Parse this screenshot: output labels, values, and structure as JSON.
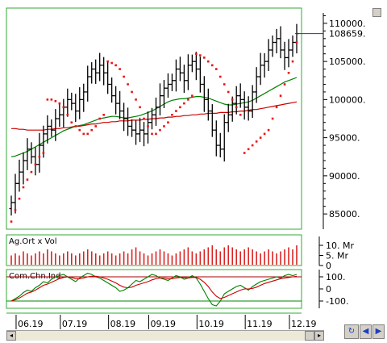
{
  "chart_data": [
    {
      "type": "ohlc",
      "panel": "price",
      "title": "",
      "y_ticks": [
        "110000.",
        "105000.",
        "100000.",
        "95000.",
        "90000.",
        "85000."
      ],
      "y_tick_values": [
        110000,
        105000,
        100000,
        95000,
        90000,
        85000
      ],
      "ylim": [
        83000,
        112000
      ],
      "last_price_label": "108659.",
      "last_price": 108659,
      "x_ticks": [
        "06.19",
        "07.19",
        "08.19",
        "09.19",
        "10.19",
        "11.19",
        "12.19"
      ],
      "series": [
        {
          "name": "",
          "kind": "ohlc",
          "color": "#000000",
          "close": [
            86500,
            89000,
            90500,
            92000,
            93500,
            92500,
            91500,
            94000,
            95500,
            96500,
            96000,
            97500,
            98000,
            99000,
            100000,
            99500,
            98500,
            100000,
            101000,
            103000,
            104000,
            103500,
            104500,
            103500,
            102000,
            100500,
            99500,
            98500,
            97500,
            96500,
            96000,
            95500,
            96000,
            95500,
            97000,
            98000,
            99000,
            100500,
            101500,
            102000,
            102500,
            104000,
            103500,
            102500,
            104500,
            105000,
            104000,
            102000,
            100000,
            98500,
            96000,
            94000,
            93500,
            97000,
            98000,
            99500,
            100500,
            100000,
            99000,
            98500,
            101000,
            103000,
            104500,
            105000,
            106500,
            107500,
            108000,
            106500,
            105500,
            106500,
            107500,
            108659
          ]
        },
        {
          "name": "",
          "kind": "parabolic-sar",
          "color": "#ee1111",
          "values": [
            84000,
            85500,
            87000,
            88500,
            89500,
            90500,
            91500,
            92500,
            93000,
            100000,
            100000,
            99800,
            99500,
            99000,
            98000,
            97000,
            96500,
            96000,
            95500,
            95500,
            96000,
            96500,
            97500,
            98000,
            105000,
            104800,
            104500,
            104000,
            103000,
            102000,
            101000,
            100000,
            99000,
            97500,
            96500,
            95500,
            95500,
            96000,
            96500,
            97000,
            98000,
            98500,
            99000,
            99500,
            100000,
            100500,
            106000,
            105800,
            105500,
            105000,
            104500,
            104000,
            103000,
            102000,
            101000,
            100000,
            99000,
            98000,
            93000,
            93500,
            94000,
            94500,
            95000,
            95500,
            96000,
            97500,
            99000,
            100500,
            102000,
            103500,
            105000,
            107500
          ]
        },
        {
          "name": "",
          "kind": "moving-average",
          "color": "#008000",
          "values": [
            92500,
            92600,
            92800,
            93000,
            93200,
            93500,
            93800,
            94100,
            94400,
            94700,
            95000,
            95300,
            95600,
            95900,
            96100,
            96300,
            96500,
            96600,
            96700,
            96900,
            97100,
            97300,
            97500,
            97600,
            97700,
            97800,
            97800,
            97700,
            97600,
            97600,
            97700,
            97800,
            97900,
            98100,
            98300,
            98500,
            98800,
            99100,
            99400,
            99700,
            99900,
            100000,
            100100,
            100100,
            100200,
            100300,
            100400,
            100400,
            100300,
            100200,
            100000,
            99800,
            99600,
            99400,
            99300,
            99300,
            99400,
            99500,
            99600,
            99700,
            99900,
            100200,
            100500,
            100800,
            101100,
            101400,
            101700,
            102000,
            102300,
            102500,
            102700,
            102900
          ]
        },
        {
          "name": "",
          "kind": "moving-average",
          "color": "#cc0000",
          "values": [
            96200,
            96200,
            96100,
            96100,
            96000,
            96000,
            96000,
            96000,
            96000,
            96100,
            96100,
            96200,
            96200,
            96300,
            96300,
            96400,
            96500,
            96500,
            96600,
            96700,
            96800,
            96800,
            96900,
            97000,
            97000,
            97100,
            97100,
            97200,
            97200,
            97200,
            97300,
            97300,
            97300,
            97400,
            97400,
            97500,
            97500,
            97600,
            97600,
            97700,
            97700,
            97800,
            97800,
            97900,
            97900,
            98000,
            98000,
            98100,
            98100,
            98200,
            98200,
            98200,
            98300,
            98300,
            98300,
            98400,
            98400,
            98500,
            98500,
            98600,
            98700,
            98700,
            98800,
            98900,
            99000,
            99100,
            99200,
            99300,
            99400,
            99500,
            99600,
            99700
          ]
        }
      ]
    },
    {
      "type": "bar",
      "panel": "volume",
      "label": "Ag.Ort x Vol",
      "y_ticks": [
        "10. Mr",
        "5. Mr",
        "0"
      ],
      "y_tick_values": [
        10,
        5,
        0
      ],
      "ylim": [
        0,
        12
      ],
      "series": [
        {
          "name": "",
          "color": "#dd2222",
          "values": [
            5,
            6,
            5,
            7,
            6,
            5,
            6,
            7,
            6,
            8,
            7,
            6,
            5,
            6,
            7,
            6,
            5,
            6,
            7,
            8,
            7,
            6,
            5,
            6,
            7,
            6,
            5,
            6,
            7,
            6,
            8,
            9,
            7,
            6,
            5,
            6,
            7,
            8,
            7,
            6,
            5,
            6,
            7,
            8,
            9,
            7,
            6,
            7,
            8,
            9,
            10,
            8,
            7,
            9,
            10,
            9,
            8,
            7,
            8,
            9,
            8,
            7,
            6,
            7,
            8,
            7,
            6,
            7,
            8,
            9,
            8,
            10
          ]
        }
      ]
    },
    {
      "type": "line",
      "panel": "indicator",
      "label": "Com.Chn.Ind.",
      "y_ticks": [
        "100.",
        "0",
        "-100."
      ],
      "y_tick_values": [
        100,
        0,
        -100
      ],
      "ylim": [
        -160,
        160
      ],
      "reference_lines": [
        100,
        -100
      ],
      "series": [
        {
          "name": "",
          "color": "#008000",
          "values": [
            -100,
            -80,
            -60,
            -30,
            -10,
            -20,
            10,
            30,
            60,
            50,
            80,
            100,
            110,
            120,
            100,
            80,
            60,
            90,
            110,
            130,
            120,
            100,
            90,
            70,
            50,
            30,
            10,
            -20,
            -10,
            10,
            40,
            70,
            60,
            80,
            100,
            120,
            110,
            90,
            80,
            70,
            90,
            110,
            100,
            80,
            90,
            110,
            90,
            40,
            -20,
            -80,
            -130,
            -140,
            -100,
            -40,
            -20,
            0,
            20,
            30,
            10,
            -10,
            20,
            40,
            60,
            70,
            80,
            90,
            100,
            90,
            110,
            120,
            110,
            120
          ]
        },
        {
          "name": "",
          "color": "#cc0000",
          "values": [
            -100,
            -90,
            -75,
            -55,
            -35,
            -25,
            -10,
            10,
            30,
            40,
            55,
            70,
            85,
            95,
            100,
            95,
            85,
            85,
            90,
            100,
            105,
            105,
            100,
            90,
            80,
            65,
            50,
            30,
            15,
            10,
            15,
            30,
            40,
            50,
            60,
            75,
            85,
            90,
            90,
            85,
            85,
            90,
            95,
            95,
            90,
            95,
            95,
            80,
            55,
            20,
            -25,
            -60,
            -80,
            -70,
            -55,
            -40,
            -25,
            -10,
            0,
            0,
            5,
            15,
            30,
            45,
            55,
            65,
            75,
            85,
            90,
            95,
            100,
            105
          ]
        }
      ]
    }
  ]
}
